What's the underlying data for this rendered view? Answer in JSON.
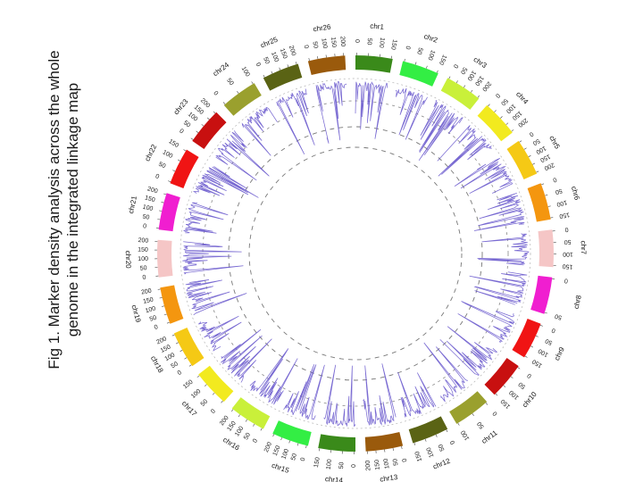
{
  "caption": {
    "line1": "Fig 1. Marker density analysis across the whole",
    "line2": "genome in the integrated linkage map"
  },
  "legend_colors": {
    "density_line": "#6a5acd",
    "dashed_ring": "#555555"
  },
  "chromosomes": [
    {
      "name": "chr1",
      "color": "#3a8a1a",
      "ticks": [
        "0",
        "50",
        "100",
        "150"
      ]
    },
    {
      "name": "chr2",
      "color": "#33ee44",
      "ticks": [
        "0",
        "50",
        "100",
        "150"
      ]
    },
    {
      "name": "chr3",
      "color": "#c9f03a",
      "ticks": [
        "0",
        "50",
        "100",
        "150",
        "200"
      ]
    },
    {
      "name": "chr4",
      "color": "#f2ea1f",
      "ticks": [
        "0",
        "50",
        "100",
        "150",
        "200"
      ]
    },
    {
      "name": "chr5",
      "color": "#f5c915",
      "ticks": [
        "0",
        "50",
        "100",
        "150",
        "200"
      ]
    },
    {
      "name": "chr6",
      "color": "#f4960f",
      "ticks": [
        "0",
        "50",
        "100",
        "150"
      ]
    },
    {
      "name": "chr7",
      "color": "#f5c6c6",
      "ticks": [
        "0",
        "50",
        "100",
        "150"
      ]
    },
    {
      "name": "chr8",
      "color": "#f01ed0",
      "ticks": [
        "0",
        "50"
      ]
    },
    {
      "name": "chr9",
      "color": "#f01414",
      "ticks": [
        "0",
        "50",
        "100",
        "150"
      ]
    },
    {
      "name": "chr10",
      "color": "#c81010",
      "ticks": [
        "0",
        "50",
        "100",
        "150"
      ]
    },
    {
      "name": "chr11",
      "color": "#9aa02e",
      "ticks": [
        "0",
        "50",
        "100"
      ]
    },
    {
      "name": "chr12",
      "color": "#5a6314",
      "ticks": [
        "0",
        "50",
        "100",
        "150"
      ]
    },
    {
      "name": "chr13",
      "color": "#9a5a0c",
      "ticks": [
        "0",
        "50",
        "100",
        "150",
        "200"
      ]
    },
    {
      "name": "chr14",
      "color": "#3a8a1a",
      "ticks": [
        "0",
        "50",
        "100",
        "150"
      ]
    },
    {
      "name": "chr15",
      "color": "#33ee44",
      "ticks": [
        "0",
        "50",
        "100",
        "150",
        "200"
      ]
    },
    {
      "name": "chr16",
      "color": "#c9f03a",
      "ticks": [
        "0",
        "50",
        "100",
        "150",
        "200"
      ]
    },
    {
      "name": "chr17",
      "color": "#f2ea1f",
      "ticks": [
        "0",
        "50",
        "100",
        "150"
      ]
    },
    {
      "name": "chr18",
      "color": "#f5c915",
      "ticks": [
        "0",
        "50",
        "100",
        "150",
        "200"
      ]
    },
    {
      "name": "chr19",
      "color": "#f4960f",
      "ticks": [
        "0",
        "50",
        "100",
        "150",
        "200"
      ]
    },
    {
      "name": "chr20",
      "color": "#f5c6c6",
      "ticks": [
        "0",
        "50",
        "100",
        "150",
        "200"
      ]
    },
    {
      "name": "chr21",
      "color": "#f01ed0",
      "ticks": [
        "0",
        "50",
        "100",
        "150",
        "200"
      ]
    },
    {
      "name": "chr22",
      "color": "#f01414",
      "ticks": [
        "0",
        "50",
        "100",
        "150"
      ]
    },
    {
      "name": "chr23",
      "color": "#c81010",
      "ticks": [
        "0",
        "50",
        "100",
        "150",
        "200"
      ]
    },
    {
      "name": "chr24",
      "color": "#9aa02e",
      "ticks": [
        "0",
        "50",
        "100"
      ]
    },
    {
      "name": "chr25",
      "color": "#5a6314",
      "ticks": [
        "0",
        "50",
        "100",
        "150",
        "200"
      ]
    },
    {
      "name": "chr26",
      "color": "#9a5a0c",
      "ticks": [
        "0",
        "50",
        "100",
        "150",
        "200"
      ]
    }
  ]
}
